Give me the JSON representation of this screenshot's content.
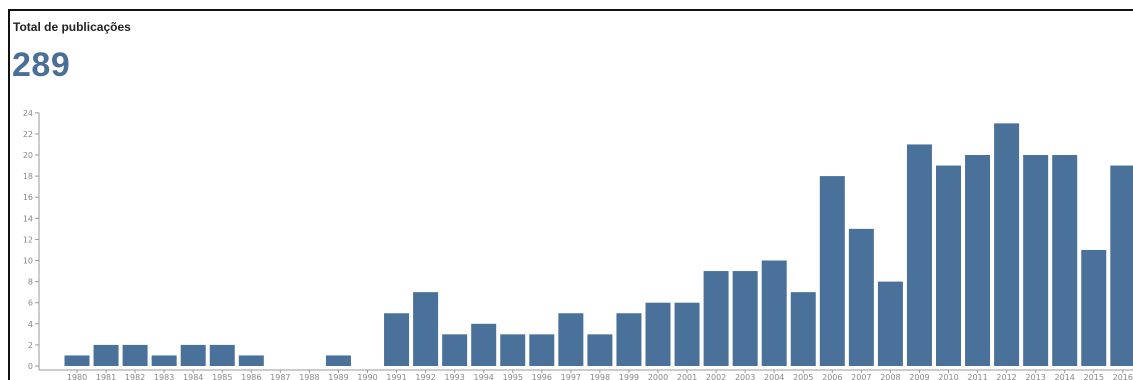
{
  "widget": {
    "title": "Total de publicações",
    "total": "289"
  },
  "colors": {
    "bar": "#4a7199",
    "total_text": "#4a6f96"
  },
  "chart_data": {
    "type": "bar",
    "title": "Total de publicações",
    "categories": [
      "1980",
      "1981",
      "1982",
      "1983",
      "1984",
      "1985",
      "1986",
      "1987",
      "1988",
      "1989",
      "1990",
      "1991",
      "1992",
      "1993",
      "1994",
      "1995",
      "1996",
      "1997",
      "1998",
      "1999",
      "2000",
      "2001",
      "2002",
      "2003",
      "2004",
      "2005",
      "2006",
      "2007",
      "2008",
      "2009",
      "2010",
      "2011",
      "2012",
      "2013",
      "2014",
      "2015",
      "2016"
    ],
    "values": [
      1,
      2,
      2,
      1,
      2,
      2,
      1,
      0,
      0,
      1,
      0,
      5,
      7,
      3,
      4,
      3,
      3,
      5,
      3,
      5,
      6,
      6,
      9,
      9,
      10,
      7,
      18,
      13,
      8,
      21,
      19,
      20,
      23,
      20,
      20,
      11,
      19
    ],
    "xlabel": "",
    "ylabel": "",
    "ylim": [
      0,
      24
    ],
    "yticks": [
      0,
      2,
      4,
      6,
      8,
      10,
      12,
      14,
      16,
      18,
      20,
      22,
      24
    ],
    "grid": false,
    "legend": "none"
  }
}
